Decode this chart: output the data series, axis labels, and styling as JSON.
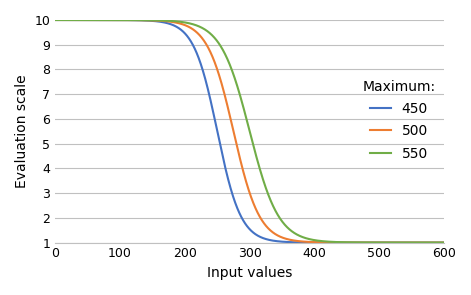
{
  "title": "",
  "xlabel": "Input values",
  "ylabel": "Evaluation scale",
  "xlim": [
    0,
    600
  ],
  "ylim": [
    1,
    10
  ],
  "xticks": [
    0,
    100,
    200,
    300,
    400,
    500,
    600
  ],
  "yticks": [
    1,
    2,
    3,
    4,
    5,
    6,
    7,
    8,
    9,
    10
  ],
  "series": [
    {
      "label": "450",
      "maximum": 450,
      "color": "#4472C4",
      "x_mid": 250,
      "k": 0.055
    },
    {
      "label": "500",
      "maximum": 500,
      "color": "#ED7D31",
      "x_mid": 275,
      "k": 0.05
    },
    {
      "label": "550",
      "maximum": 550,
      "color": "#70AD47",
      "x_mid": 300,
      "k": 0.045
    }
  ],
  "legend_title": "Maximum:",
  "x_min": 0,
  "x_max": 600,
  "output_min": 1,
  "output_max": 10,
  "background_color": "#FFFFFF",
  "grid_color": "#C0C0C0",
  "xlabel_fontsize": 10,
  "ylabel_fontsize": 10,
  "legend_fontsize": 10,
  "tick_fontsize": 9
}
